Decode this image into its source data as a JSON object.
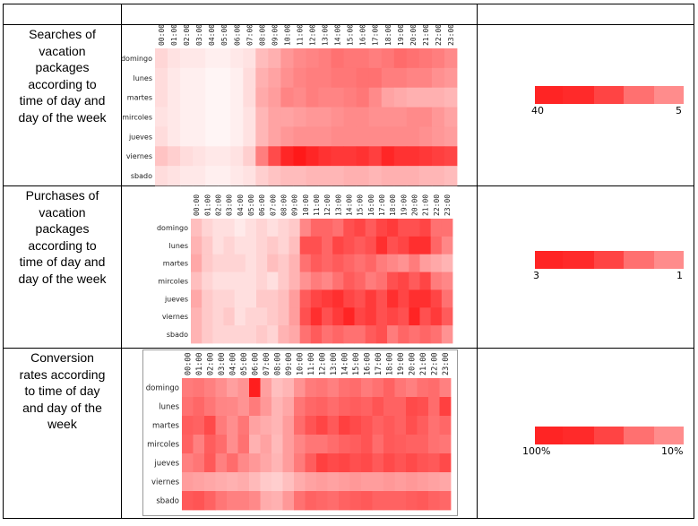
{
  "rows": [
    {
      "label_lines": [
        "Searches of",
        "vacation",
        "packages",
        "according to",
        "time of day and",
        "day of the week"
      ],
      "legend": {
        "left": "40",
        "right": "5"
      }
    },
    {
      "label_lines": [
        "Purchases of",
        "vacation",
        "packages",
        "according to",
        "time of day and",
        "day of the week"
      ],
      "legend": {
        "left": "3",
        "right": "1"
      }
    },
    {
      "label_lines": [
        "Conversion",
        "rates according",
        "to time of day",
        "and day of the",
        "week"
      ],
      "legend": {
        "left": "100%",
        "right": "10%"
      }
    }
  ],
  "legend_colors": [
    "#ff2020",
    "#ff2020",
    "#ff3d3d",
    "#ff6a6a",
    "#ff8a8a",
    "#ff9a9a"
  ],
  "chart_data": [
    {
      "type": "heatmap",
      "x": [
        "00:00",
        "01:00",
        "02:00",
        "03:00",
        "04:00",
        "05:00",
        "06:00",
        "07:00",
        "08:00",
        "09:00",
        "10:00",
        "11:00",
        "12:00",
        "13:00",
        "14:00",
        "15:00",
        "16:00",
        "17:00",
        "18:00",
        "19:00",
        "20:00",
        "21:00",
        "22:00",
        "23:00"
      ],
      "y": [
        "domingo",
        "lunes",
        "martes",
        "mircoles",
        "jueves",
        "viernes",
        "sbado"
      ],
      "value_range": [
        5,
        40
      ],
      "values": [
        [
          10,
          8,
          7,
          7,
          6,
          6,
          7,
          8,
          14,
          16,
          20,
          22,
          23,
          24,
          26,
          25,
          25,
          24,
          25,
          27,
          26,
          25,
          24,
          22
        ],
        [
          9,
          7,
          6,
          6,
          5,
          5,
          6,
          9,
          16,
          18,
          21,
          23,
          24,
          24,
          25,
          25,
          26,
          26,
          24,
          24,
          23,
          23,
          21,
          20
        ],
        [
          9,
          7,
          6,
          6,
          5,
          5,
          6,
          9,
          17,
          19,
          23,
          22,
          24,
          23,
          23,
          24,
          25,
          22,
          18,
          17,
          16,
          16,
          16,
          15
        ],
        [
          8,
          7,
          6,
          6,
          5,
          5,
          6,
          8,
          15,
          18,
          18,
          19,
          20,
          20,
          21,
          22,
          22,
          21,
          21,
          21,
          22,
          22,
          20,
          18
        ],
        [
          9,
          7,
          6,
          6,
          5,
          5,
          6,
          8,
          15,
          18,
          20,
          21,
          21,
          21,
          22,
          22,
          22,
          22,
          22,
          22,
          22,
          21,
          20,
          19
        ],
        [
          13,
          11,
          9,
          8,
          7,
          7,
          8,
          11,
          24,
          32,
          38,
          40,
          38,
          36,
          35,
          35,
          36,
          34,
          38,
          36,
          36,
          35,
          34,
          33
        ],
        [
          9,
          8,
          7,
          7,
          6,
          6,
          7,
          8,
          11,
          13,
          14,
          14,
          15,
          15,
          15,
          16,
          16,
          15,
          16,
          16,
          16,
          15,
          15,
          14
        ]
      ]
    },
    {
      "type": "heatmap",
      "x": [
        "00:00",
        "01:00",
        "02:00",
        "03:00",
        "04:00",
        "05:00",
        "06:00",
        "07:00",
        "08:00",
        "09:00",
        "10:00",
        "11:00",
        "12:00",
        "13:00",
        "14:00",
        "15:00",
        "16:00",
        "17:00",
        "18:00",
        "19:00",
        "20:00",
        "21:00",
        "22:00",
        "23:00"
      ],
      "y": [
        "domingo",
        "lunes",
        "martes",
        "mircoles",
        "jueves",
        "viernes",
        "sbado"
      ],
      "value_range": [
        1,
        3
      ],
      "values": [
        [
          1.5,
          1.3,
          1.2,
          1.2,
          1.1,
          1.2,
          1.3,
          1.2,
          1.3,
          1.4,
          2.0,
          2.3,
          2.3,
          2.2,
          2.5,
          2.6,
          2.4,
          2.6,
          2.7,
          2.5,
          2.5,
          2.6,
          2.2,
          2.2
        ],
        [
          1.6,
          1.4,
          1.2,
          1.3,
          1.2,
          1.2,
          1.3,
          1.4,
          1.3,
          1.5,
          2.5,
          2.5,
          2.3,
          2.6,
          2.5,
          2.4,
          2.5,
          2.8,
          2.5,
          2.6,
          2.8,
          2.8,
          2.3,
          2.0
        ],
        [
          1.7,
          1.4,
          1.3,
          1.3,
          1.3,
          1.2,
          1.3,
          1.5,
          1.4,
          1.6,
          2.2,
          2.4,
          2.3,
          2.4,
          2.3,
          2.2,
          2.3,
          2.1,
          2.0,
          1.9,
          2.1,
          1.8,
          1.7,
          1.6
        ],
        [
          1.5,
          1.3,
          1.2,
          1.2,
          1.2,
          1.2,
          1.3,
          1.2,
          1.4,
          1.6,
          1.9,
          2.1,
          2.0,
          2.2,
          2.4,
          2.3,
          2.1,
          2.2,
          2.5,
          2.6,
          2.4,
          2.6,
          2.1,
          2.0
        ],
        [
          1.7,
          1.4,
          1.3,
          1.3,
          1.2,
          1.2,
          1.4,
          1.4,
          1.5,
          1.8,
          2.4,
          2.6,
          2.7,
          2.8,
          2.6,
          2.5,
          2.7,
          2.5,
          2.8,
          2.6,
          2.8,
          2.8,
          2.6,
          2.2
        ],
        [
          1.6,
          1.4,
          1.3,
          1.4,
          1.2,
          1.3,
          1.3,
          1.4,
          1.5,
          1.8,
          2.5,
          2.8,
          2.5,
          2.7,
          2.9,
          2.6,
          2.7,
          2.5,
          2.6,
          2.5,
          2.9,
          2.5,
          2.7,
          2.4
        ],
        [
          1.6,
          1.4,
          1.3,
          1.3,
          1.3,
          1.3,
          1.4,
          1.3,
          1.6,
          1.7,
          2.2,
          2.4,
          2.2,
          2.3,
          2.2,
          2.2,
          2.4,
          2.5,
          2.1,
          2.3,
          2.2,
          2.3,
          2.2,
          1.9
        ]
      ]
    },
    {
      "type": "heatmap",
      "x": [
        "00:00",
        "01:00",
        "02:00",
        "03:00",
        "04:00",
        "05:00",
        "06:00",
        "07:00",
        "08:00",
        "09:00",
        "10:00",
        "11:00",
        "12:00",
        "13:00",
        "14:00",
        "15:00",
        "16:00",
        "17:00",
        "18:00",
        "19:00",
        "20:00",
        "21:00",
        "22:00",
        "23:00"
      ],
      "y": [
        "domingo",
        "lunes",
        "martes",
        "mircoles",
        "jueves",
        "viernes",
        "sbado"
      ],
      "value_range": [
        10,
        100
      ],
      "values": [
        [
          60,
          62,
          58,
          52,
          45,
          50,
          98,
          45,
          32,
          36,
          50,
          60,
          62,
          58,
          64,
          66,
          60,
          64,
          70,
          62,
          58,
          64,
          66,
          58
        ],
        [
          64,
          68,
          62,
          56,
          55,
          50,
          60,
          48,
          36,
          42,
          62,
          68,
          70,
          66,
          70,
          72,
          70,
          76,
          70,
          70,
          80,
          78,
          66,
          84
        ],
        [
          72,
          70,
          80,
          60,
          52,
          62,
          44,
          40,
          36,
          46,
          66,
          76,
          82,
          74,
          84,
          80,
          76,
          70,
          74,
          70,
          78,
          72,
          64,
          68
        ],
        [
          70,
          58,
          72,
          66,
          52,
          64,
          38,
          44,
          34,
          46,
          56,
          62,
          62,
          66,
          70,
          72,
          76,
          66,
          74,
          72,
          70,
          70,
          64,
          62
        ],
        [
          58,
          62,
          74,
          58,
          66,
          54,
          48,
          42,
          36,
          46,
          60,
          72,
          84,
          80,
          82,
          78,
          80,
          74,
          80,
          76,
          80,
          76,
          74,
          80
        ],
        [
          46,
          44,
          42,
          40,
          38,
          40,
          34,
          28,
          26,
          32,
          40,
          44,
          46,
          44,
          46,
          48,
          46,
          46,
          48,
          46,
          48,
          46,
          44,
          42
        ],
        [
          74,
          76,
          70,
          62,
          58,
          58,
          54,
          40,
          38,
          48,
          64,
          70,
          68,
          66,
          70,
          72,
          74,
          70,
          70,
          70,
          72,
          74,
          70,
          68
        ]
      ]
    }
  ]
}
